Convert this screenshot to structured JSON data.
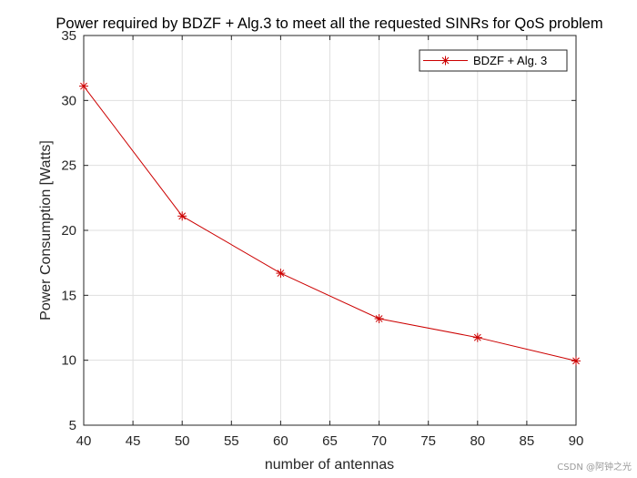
{
  "chart_data": {
    "type": "line",
    "title": "Power required by BDZF + Alg.3 to meet all the requested SINRs for QoS problem",
    "xlabel": "number of antennas",
    "ylabel": "Power Consumption [Watts]",
    "xlim": [
      40,
      90
    ],
    "ylim": [
      5,
      35
    ],
    "xticks": [
      40,
      45,
      50,
      55,
      60,
      65,
      70,
      75,
      80,
      85,
      90
    ],
    "yticks": [
      5,
      10,
      15,
      20,
      25,
      30,
      35
    ],
    "grid": true,
    "legend_position": "top-right",
    "series": [
      {
        "name": "BDZF + Alg. 3",
        "color": "#cc0000",
        "marker": "asterisk",
        "x": [
          40,
          50,
          60,
          70,
          80,
          90
        ],
        "y": [
          31.1,
          21.1,
          16.7,
          13.2,
          11.75,
          9.95
        ]
      }
    ]
  },
  "watermark": {
    "text": "CSDN @阿钟之光"
  }
}
